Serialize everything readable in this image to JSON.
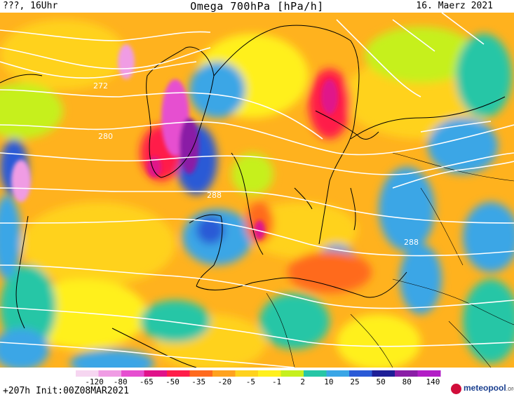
{
  "header": {
    "left_text": "???, 16Uhr",
    "title": "Omega 700hPa [hPa/h]",
    "date": "16. Maerz 2021"
  },
  "map": {
    "contour_labels": [
      "272",
      "280",
      "288",
      "288"
    ]
  },
  "colorbar": {
    "labels": [
      "-120",
      "-80",
      "-65",
      "-50",
      "-35",
      "-20",
      "-5",
      "-1",
      "2",
      "10",
      "25",
      "50",
      "80",
      "140"
    ],
    "colors": [
      "#f6d6f1",
      "#f09ce4",
      "#e64fd0",
      "#e0138a",
      "#ff1e4a",
      "#ff6a1e",
      "#ffa21e",
      "#ffd21e",
      "#fff01e",
      "#c6f01e",
      "#26c6a6",
      "#3aa6e6",
      "#2a5ad6",
      "#1e1e96",
      "#8a1ea6",
      "#b21ec6"
    ]
  },
  "footer": {
    "run_info": "+207h Init:00Z08MAR2021",
    "logo_main": "meteopool",
    "logo_suffix": ".org"
  }
}
